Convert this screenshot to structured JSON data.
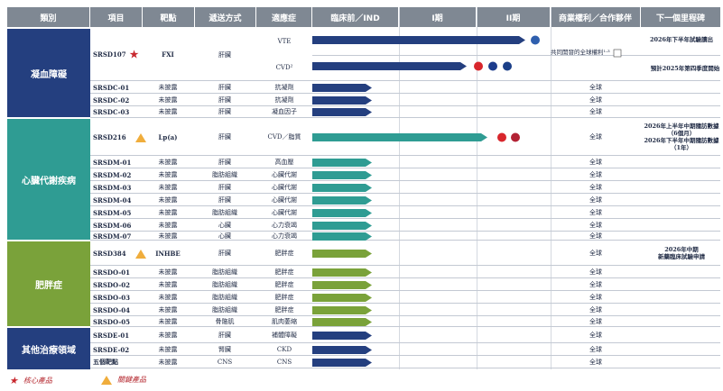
{
  "header": {
    "category": "類別",
    "project": "項目",
    "target": "靶點",
    "delivery": "遞送方式",
    "indication": "適應症",
    "preclinical": "臨床前／IND",
    "phase1": "I期",
    "phase2": "II期",
    "rights": "商業權利／合作夥伴",
    "milestone": "下一個里程碑"
  },
  "categories": [
    {
      "name": "凝血障礙",
      "color": "#243f7f"
    },
    {
      "name": "心臟代謝疾病",
      "color": "#2f9c93"
    },
    {
      "name": "肥胖症",
      "color": "#7aa23a"
    },
    {
      "name": "其他治療領域",
      "color": "#243f7f"
    }
  ],
  "srsd107": {
    "project": "SRSD107",
    "target": "FXI",
    "delivery": "肝臟",
    "ind_vte": "VTE",
    "ind_cvd": "CVD²",
    "rights_note": "共同開發的全球權利¹·³",
    "milestone_vte": "2026年下半年試驗讀出",
    "milestone_cvd": "預計2025年第四季度開始"
  },
  "rows": [
    {
      "project": "SRSDC-01",
      "target": "未披露",
      "delivery": "肝臟",
      "indication": "抗凝劑",
      "rights": "全球",
      "milestone": "",
      "cat": 0
    },
    {
      "project": "SRSDC-02",
      "target": "未披露",
      "delivery": "肝臟",
      "indication": "抗凝劑",
      "rights": "全球",
      "milestone": "",
      "cat": 0
    },
    {
      "project": "SRSDC-03",
      "target": "未披露",
      "delivery": "肝臟",
      "indication": "凝血因子",
      "rights": "全球",
      "milestone": "",
      "cat": 0
    },
    {
      "project": "SRSD216",
      "target": "Lp(a)",
      "delivery": "肝臟",
      "indication": "CVD／脂質",
      "rights": "全球",
      "milestone": "2026年上半年中期隨訪數據（6個月）\n2026年下半年中期隨訪數據（1年）",
      "cat": 1,
      "key": true
    },
    {
      "project": "SRSDM-01",
      "target": "未披露",
      "delivery": "肝臟",
      "indication": "高血壓",
      "rights": "全球",
      "milestone": "",
      "cat": 1
    },
    {
      "project": "SRSDM-02",
      "target": "未披露",
      "delivery": "脂肪組織",
      "indication": "心臟代謝",
      "rights": "全球",
      "milestone": "",
      "cat": 1
    },
    {
      "project": "SRSDM-03",
      "target": "未披露",
      "delivery": "肝臟",
      "indication": "心臟代謝",
      "rights": "全球",
      "milestone": "",
      "cat": 1
    },
    {
      "project": "SRSDM-04",
      "target": "未披露",
      "delivery": "肝臟",
      "indication": "心臟代謝",
      "rights": "全球",
      "milestone": "",
      "cat": 1
    },
    {
      "project": "SRSDM-05",
      "target": "未披露",
      "delivery": "脂肪組織",
      "indication": "心臟代謝",
      "rights": "全球",
      "milestone": "",
      "cat": 1
    },
    {
      "project": "SRSDM-06",
      "target": "未披露",
      "delivery": "心臟",
      "indication": "心力衰竭",
      "rights": "全球",
      "milestone": "",
      "cat": 1
    },
    {
      "project": "SRSDM-07",
      "target": "未披露",
      "delivery": "心臟",
      "indication": "心力衰竭",
      "rights": "全球",
      "milestone": "",
      "cat": 1
    },
    {
      "project": "SRSD384",
      "target": "INHBE",
      "delivery": "肝臟",
      "indication": "肥胖症",
      "rights": "全球",
      "milestone": "2026年中期\n新藥臨床試驗申請",
      "cat": 2,
      "key": true
    },
    {
      "project": "SRSDO-01",
      "target": "未披露",
      "delivery": "脂肪組織",
      "indication": "肥胖症",
      "rights": "全球",
      "milestone": "",
      "cat": 2
    },
    {
      "project": "SRSDO-02",
      "target": "未披露",
      "delivery": "脂肪組織",
      "indication": "肥胖症",
      "rights": "全球",
      "milestone": "",
      "cat": 2
    },
    {
      "project": "SRSDO-03",
      "target": "未披露",
      "delivery": "脂肪組織",
      "indication": "肥胖症",
      "rights": "全球",
      "milestone": "",
      "cat": 2
    },
    {
      "project": "SRSDO-04",
      "target": "未披露",
      "delivery": "脂肪組織",
      "indication": "肥胖症",
      "rights": "全球",
      "milestone": "",
      "cat": 2
    },
    {
      "project": "SRSDO-05",
      "target": "未披露",
      "delivery": "骨骼肌",
      "indication": "肌肉萎縮",
      "rights": "全球",
      "milestone": "",
      "cat": 2
    },
    {
      "project": "SRSDE-01",
      "target": "未披露",
      "delivery": "肝臟",
      "indication": "補體障礙",
      "rights": "全球",
      "milestone": "",
      "cat": 3
    },
    {
      "project": "SRSDE-02",
      "target": "未披露",
      "delivery": "腎臟",
      "indication": "CKD",
      "rights": "全球",
      "milestone": "",
      "cat": 3
    },
    {
      "project": "五個靶點",
      "target": "未披露",
      "delivery": "CNS",
      "indication": "CNS",
      "rights": "全球",
      "milestone": "",
      "cat": 3
    }
  ],
  "legend": {
    "core": "核心產品",
    "key": "關鍵產品"
  },
  "colors": {
    "navy": "#243f7f",
    "teal": "#2f9c93",
    "green": "#7aa23a",
    "header": "#7f8893"
  }
}
